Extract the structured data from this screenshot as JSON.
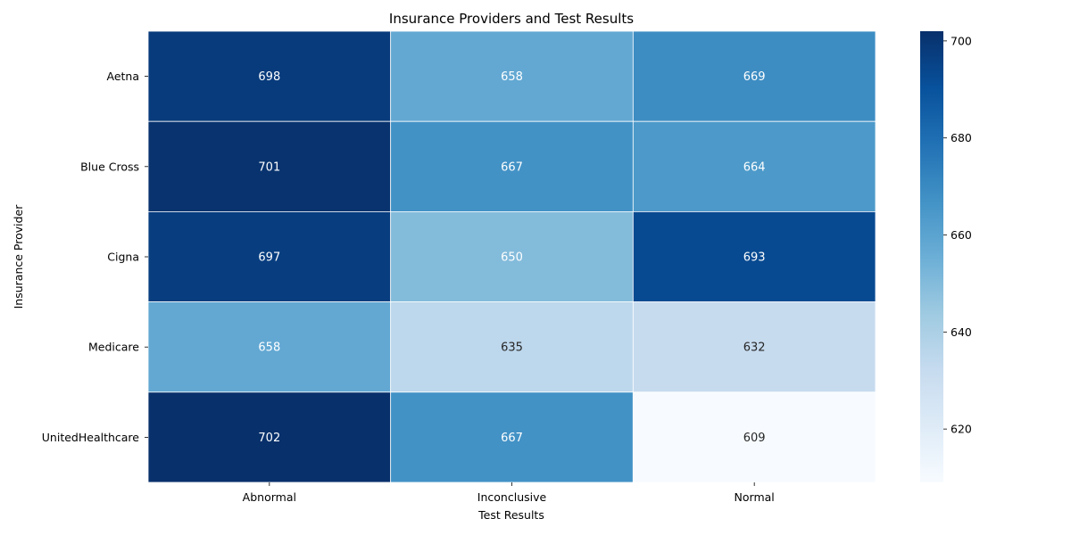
{
  "chart_data": {
    "type": "heatmap",
    "title": "Insurance Providers and Test Results",
    "xlabel": "Test Results",
    "ylabel": "Insurance Provider",
    "x_categories": [
      "Abnormal",
      "Inconclusive",
      "Normal"
    ],
    "y_categories": [
      "Aetna",
      "Blue Cross",
      "Cigna",
      "Medicare",
      "UnitedHealthcare"
    ],
    "values": [
      [
        698,
        658,
        669
      ],
      [
        701,
        667,
        664
      ],
      [
        697,
        650,
        693
      ],
      [
        658,
        635,
        632
      ],
      [
        702,
        667,
        609
      ]
    ],
    "colorscale": "Blues",
    "colorbar": {
      "range": [
        609,
        702
      ],
      "ticks": [
        620,
        640,
        660,
        680,
        700
      ]
    }
  }
}
